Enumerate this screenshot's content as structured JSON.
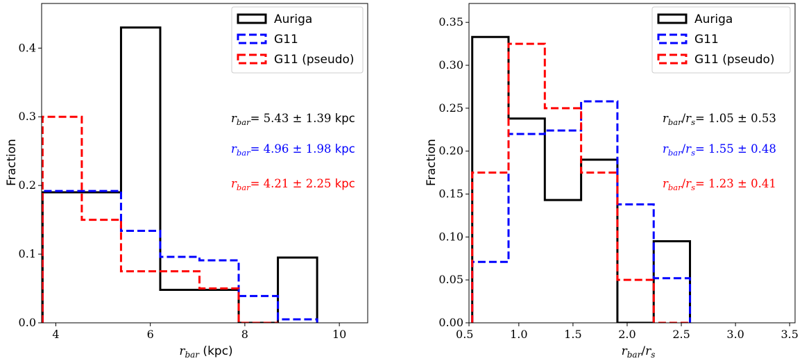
{
  "chart_data": [
    {
      "type": "histogram",
      "xlabel": "r_bar (kpc)",
      "xlabel_var": "r",
      "xlabel_sub": "bar",
      "xlabel_unit": "(kpc)",
      "ylabel": "Fraction",
      "xlim": [
        3.7,
        10.6
      ],
      "ylim": [
        0.0,
        0.465
      ],
      "xticks": [
        4,
        6,
        8,
        10
      ],
      "yticks": [
        0.0,
        0.1,
        0.2,
        0.3,
        0.4
      ],
      "xtick_labels": [
        "4",
        "6",
        "8",
        "10"
      ],
      "ytick_labels": [
        "0.0",
        "0.1",
        "0.2",
        "0.3",
        "0.4"
      ],
      "legend_position": "top-right",
      "series": [
        {
          "name": "Auriga",
          "color": "#000000",
          "style": "solid",
          "edges": [
            3.72,
            5.38,
            6.21,
            7.04,
            7.87,
            8.7,
            9.53
          ],
          "values": [
            0.19,
            0.43,
            0.048,
            0.048,
            0.0,
            0.095
          ]
        },
        {
          "name": "G11",
          "color": "#0000ff",
          "style": "dashed",
          "edges": [
            3.72,
            5.38,
            6.21,
            7.04,
            7.87,
            8.7,
            9.53
          ],
          "values": [
            0.192,
            0.134,
            0.096,
            0.091,
            0.039,
            0.005
          ]
        },
        {
          "name": "G11 (pseudo)",
          "color": "#ff0000",
          "style": "dashed",
          "edges": [
            3.72,
            4.55,
            5.38,
            6.21,
            7.04,
            7.87,
            8.7
          ],
          "values": [
            0.3,
            0.15,
            0.075,
            0.075,
            0.05,
            0.0
          ]
        }
      ],
      "annotations": [
        {
          "var": "r",
          "sub": "bar",
          "text": "= 5.43 ± 1.39",
          "unit": "kpc",
          "color": "#000000"
        },
        {
          "var": "r",
          "sub": "bar",
          "text": "= 4.96 ± 1.98",
          "unit": "kpc",
          "color": "#0000ff"
        },
        {
          "var": "r",
          "sub": "bar",
          "text": "= 4.21 ± 2.25",
          "unit": "kpc",
          "color": "#ff0000"
        }
      ]
    },
    {
      "type": "histogram",
      "xlabel": "r_bar/r_s",
      "xlabel_var": "r",
      "xlabel_sub": "bar",
      "xlabel_var2": "r",
      "xlabel_sub2": "s",
      "ylabel": "Fraction",
      "xlim": [
        0.54,
        3.55
      ],
      "ylim": [
        0.0,
        0.372
      ],
      "xticks": [
        0.5,
        1.0,
        1.5,
        2.0,
        2.5,
        3.0,
        3.5
      ],
      "yticks": [
        0.0,
        0.05,
        0.1,
        0.15,
        0.2,
        0.25,
        0.3,
        0.35
      ],
      "xtick_labels": [
        "0.5",
        "1.0",
        "1.5",
        "2.0",
        "2.5",
        "3.0",
        "3.5"
      ],
      "ytick_labels": [
        "0.00",
        "0.05",
        "0.10",
        "0.15",
        "0.20",
        "0.25",
        "0.30",
        "0.35"
      ],
      "legend_position": "top-right",
      "series": [
        {
          "name": "Auriga",
          "color": "#000000",
          "style": "solid",
          "edges": [
            0.57,
            0.905,
            1.24,
            1.575,
            1.91,
            2.245,
            2.58
          ],
          "values": [
            0.333,
            0.238,
            0.143,
            0.19,
            0.0,
            0.095
          ]
        },
        {
          "name": "G11",
          "color": "#0000ff",
          "style": "dashed",
          "edges": [
            0.57,
            0.905,
            1.24,
            1.575,
            1.91,
            2.245,
            2.58
          ],
          "values": [
            0.071,
            0.22,
            0.224,
            0.258,
            0.138,
            0.052
          ]
        },
        {
          "name": "G11 (pseudo)",
          "color": "#ff0000",
          "style": "dashed",
          "edges": [
            0.57,
            0.905,
            1.24,
            1.575,
            1.91,
            2.245,
            2.58
          ],
          "values": [
            0.175,
            0.325,
            0.25,
            0.175,
            0.05,
            0.0
          ]
        }
      ],
      "annotations": [
        {
          "var": "r",
          "sub": "bar",
          "var2": "r",
          "sub2": "s",
          "text": "= 1.05 ± 0.53",
          "color": "#000000"
        },
        {
          "var": "r",
          "sub": "bar",
          "var2": "r",
          "sub2": "s",
          "text": "= 1.55 ± 0.48",
          "color": "#0000ff"
        },
        {
          "var": "r",
          "sub": "bar",
          "var2": "r",
          "sub2": "s",
          "text": "= 1.23 ± 0.41",
          "color": "#ff0000"
        }
      ]
    }
  ]
}
